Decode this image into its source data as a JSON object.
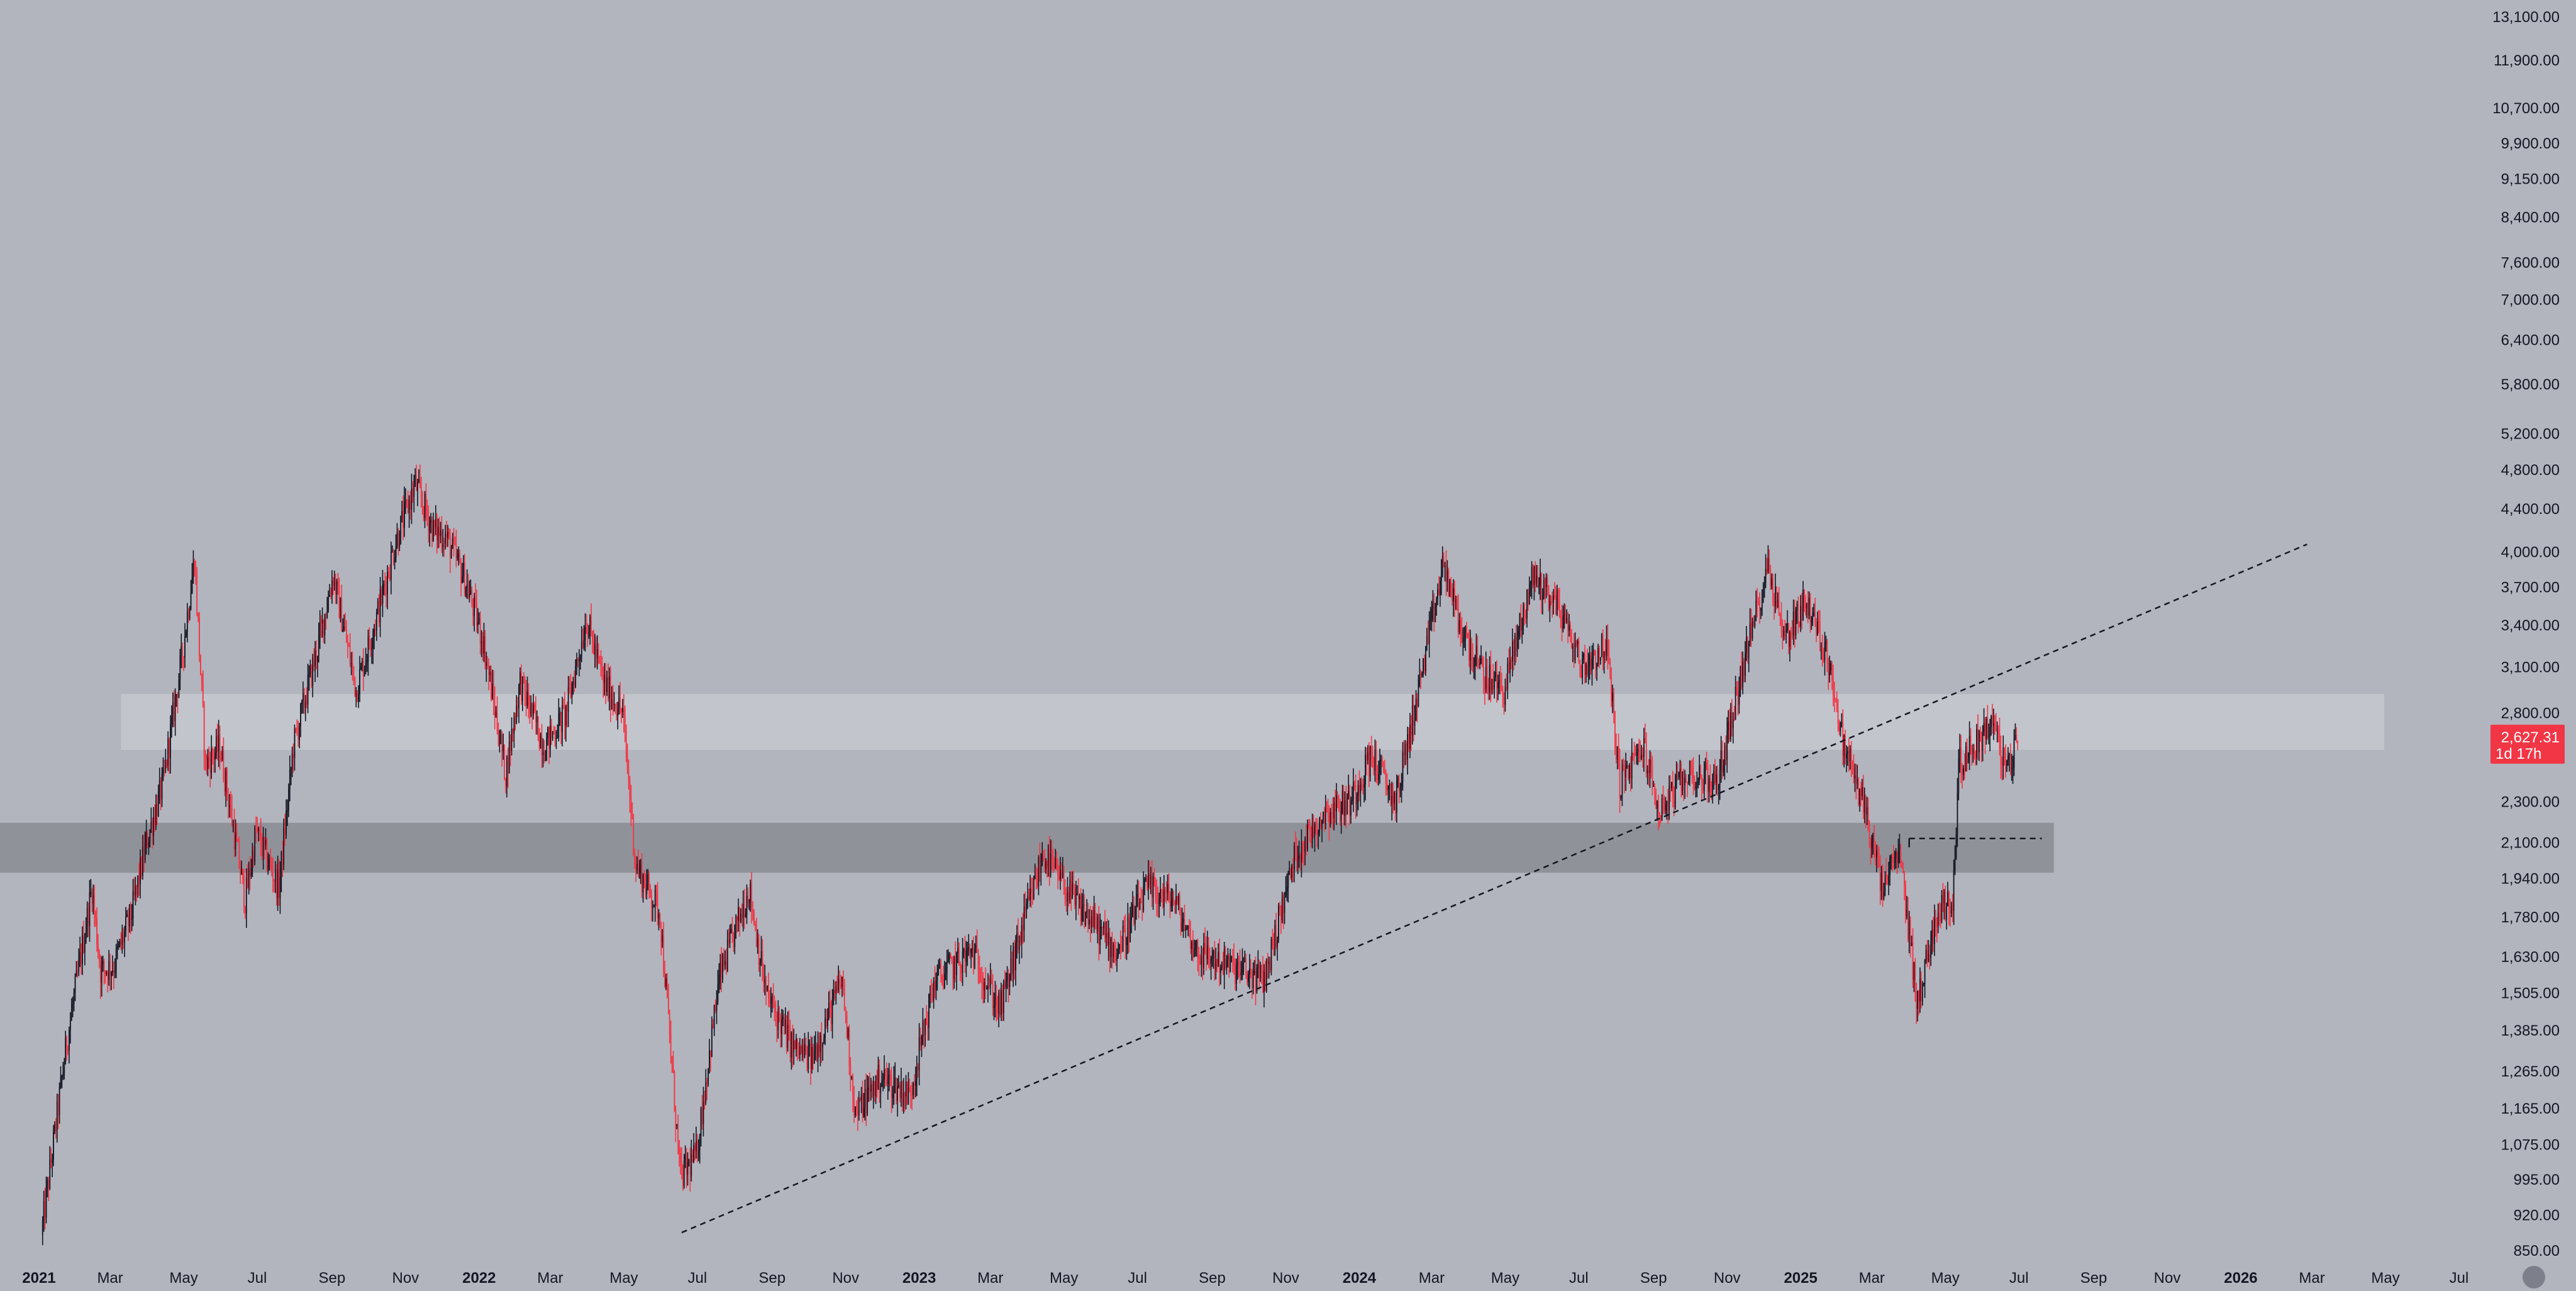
{
  "chart_data": {
    "type": "candlestick",
    "title": "",
    "xlabel": "",
    "ylabel": "",
    "yscale": "log",
    "ylim": [
      830,
      13600
    ],
    "xlim": [
      "2021-01-01",
      "2026-07-31"
    ],
    "grid": false,
    "colors": {
      "background": "#b2b5be",
      "up": "#131722",
      "down": "#f23645",
      "text": "#131722",
      "price_label": "#f23645",
      "resistance_zone": "#c4c6cd",
      "support_zone": "#8a8c93",
      "trendline": "#131722"
    },
    "y_ticks": [
      {
        "value": 13100,
        "label": "13,100.00"
      },
      {
        "value": 11900,
        "label": "11,900.00"
      },
      {
        "value": 10700,
        "label": "10,700.00"
      },
      {
        "value": 9900,
        "label": "9,900.00"
      },
      {
        "value": 9150,
        "label": "9,150.00"
      },
      {
        "value": 8400,
        "label": "8,400.00"
      },
      {
        "value": 7600,
        "label": "7,600.00"
      },
      {
        "value": 7000,
        "label": "7,000.00"
      },
      {
        "value": 6400,
        "label": "6,400.00"
      },
      {
        "value": 5800,
        "label": "5,800.00"
      },
      {
        "value": 5200,
        "label": "5,200.00"
      },
      {
        "value": 4800,
        "label": "4,800.00"
      },
      {
        "value": 4400,
        "label": "4,400.00"
      },
      {
        "value": 4000,
        "label": "4,000.00"
      },
      {
        "value": 3700,
        "label": "3,700.00"
      },
      {
        "value": 3400,
        "label": "3,400.00"
      },
      {
        "value": 3100,
        "label": "3,100.00"
      },
      {
        "value": 2800,
        "label": "2,800.00"
      },
      {
        "value": 2300,
        "label": "2,300.00"
      },
      {
        "value": 2100,
        "label": "2,100.00"
      },
      {
        "value": 1940,
        "label": "1,940.00"
      },
      {
        "value": 1780,
        "label": "1,780.00"
      },
      {
        "value": 1630,
        "label": "1,630.00"
      },
      {
        "value": 1505,
        "label": "1,505.00"
      },
      {
        "value": 1385,
        "label": "1,385.00"
      },
      {
        "value": 1265,
        "label": "1,265.00"
      },
      {
        "value": 1165,
        "label": "1,165.00"
      },
      {
        "value": 1075,
        "label": "1,075.00"
      },
      {
        "value": 995,
        "label": "995.00"
      },
      {
        "value": 920,
        "label": "920.00"
      },
      {
        "value": 850,
        "label": "850.00"
      }
    ],
    "x_ticks": [
      {
        "date": "2021-01-01",
        "label": "2021",
        "year": true
      },
      {
        "date": "2021-03-01",
        "label": "Mar"
      },
      {
        "date": "2021-05-01",
        "label": "May"
      },
      {
        "date": "2021-07-01",
        "label": "Jul"
      },
      {
        "date": "2021-09-01",
        "label": "Sep"
      },
      {
        "date": "2021-11-01",
        "label": "Nov"
      },
      {
        "date": "2022-01-01",
        "label": "2022",
        "year": true
      },
      {
        "date": "2022-03-01",
        "label": "Mar"
      },
      {
        "date": "2022-05-01",
        "label": "May"
      },
      {
        "date": "2022-07-01",
        "label": "Jul"
      },
      {
        "date": "2022-09-01",
        "label": "Sep"
      },
      {
        "date": "2022-11-01",
        "label": "Nov"
      },
      {
        "date": "2023-01-01",
        "label": "2023",
        "year": true
      },
      {
        "date": "2023-03-01",
        "label": "Mar"
      },
      {
        "date": "2023-05-01",
        "label": "May"
      },
      {
        "date": "2023-07-01",
        "label": "Jul"
      },
      {
        "date": "2023-09-01",
        "label": "Sep"
      },
      {
        "date": "2023-11-01",
        "label": "Nov"
      },
      {
        "date": "2024-01-01",
        "label": "2024",
        "year": true
      },
      {
        "date": "2024-03-01",
        "label": "Mar"
      },
      {
        "date": "2024-05-01",
        "label": "May"
      },
      {
        "date": "2024-07-01",
        "label": "Jul"
      },
      {
        "date": "2024-09-01",
        "label": "Sep"
      },
      {
        "date": "2024-11-01",
        "label": "Nov"
      },
      {
        "date": "2025-01-01",
        "label": "2025",
        "year": true
      },
      {
        "date": "2025-03-01",
        "label": "Mar"
      },
      {
        "date": "2025-05-01",
        "label": "May"
      },
      {
        "date": "2025-07-01",
        "label": "Jul"
      },
      {
        "date": "2025-09-01",
        "label": "Sep"
      },
      {
        "date": "2025-11-01",
        "label": "Nov"
      },
      {
        "date": "2026-01-01",
        "label": "2026",
        "year": true
      },
      {
        "date": "2026-03-01",
        "label": "Mar"
      },
      {
        "date": "2026-05-01",
        "label": "May"
      },
      {
        "date": "2026-07-01",
        "label": "Jul"
      }
    ],
    "price_path": [
      [
        "2021-01-04",
        880
      ],
      [
        "2021-01-25",
        1350
      ],
      [
        "2021-02-15",
        1900
      ],
      [
        "2021-02-22",
        1580
      ],
      [
        "2021-03-05",
        1600
      ],
      [
        "2021-03-20",
        1800
      ],
      [
        "2021-04-01",
        2100
      ],
      [
        "2021-04-15",
        2400
      ],
      [
        "2021-05-01",
        3200
      ],
      [
        "2021-05-11",
        3950
      ],
      [
        "2021-05-20",
        2500
      ],
      [
        "2021-06-01",
        2600
      ],
      [
        "2021-06-22",
        1850
      ],
      [
        "2021-07-01",
        2150
      ],
      [
        "2021-07-20",
        1900
      ],
      [
        "2021-08-01",
        2600
      ],
      [
        "2021-08-20",
        3200
      ],
      [
        "2021-09-03",
        3800
      ],
      [
        "2021-09-22",
        2950
      ],
      [
        "2021-10-10",
        3500
      ],
      [
        "2021-10-25",
        4100
      ],
      [
        "2021-11-10",
        4650
      ],
      [
        "2021-11-25",
        4200
      ],
      [
        "2021-12-05",
        4150
      ],
      [
        "2021-12-20",
        3800
      ],
      [
        "2022-01-05",
        3300
      ],
      [
        "2022-01-24",
        2450
      ],
      [
        "2022-02-05",
        3000
      ],
      [
        "2022-02-25",
        2600
      ],
      [
        "2022-03-15",
        2800
      ],
      [
        "2022-04-01",
        3450
      ],
      [
        "2022-04-15",
        3000
      ],
      [
        "2022-05-01",
        2800
      ],
      [
        "2022-05-12",
        2000
      ],
      [
        "2022-06-01",
        1800
      ],
      [
        "2022-06-18",
        1000
      ],
      [
        "2022-07-01",
        1050
      ],
      [
        "2022-07-20",
        1550
      ],
      [
        "2022-08-14",
        1900
      ],
      [
        "2022-08-28",
        1500
      ],
      [
        "2022-09-20",
        1330
      ],
      [
        "2022-10-05",
        1300
      ],
      [
        "2022-10-30",
        1550
      ],
      [
        "2022-11-10",
        1150
      ],
      [
        "2022-12-01",
        1250
      ],
      [
        "2022-12-25",
        1200
      ],
      [
        "2023-01-15",
        1550
      ],
      [
        "2023-02-15",
        1650
      ],
      [
        "2023-03-10",
        1450
      ],
      [
        "2023-04-01",
        1800
      ],
      [
        "2023-04-15",
        2050
      ],
      [
        "2023-05-10",
        1850
      ],
      [
        "2023-06-15",
        1650
      ],
      [
        "2023-07-10",
        1900
      ],
      [
        "2023-08-01",
        1850
      ],
      [
        "2023-08-20",
        1650
      ],
      [
        "2023-09-15",
        1600
      ],
      [
        "2023-10-15",
        1550
      ],
      [
        "2023-11-10",
        2050
      ],
      [
        "2023-12-05",
        2250
      ],
      [
        "2023-12-25",
        2300
      ],
      [
        "2024-01-12",
        2550
      ],
      [
        "2024-02-01",
        2300
      ],
      [
        "2024-02-20",
        2950
      ],
      [
        "2024-03-12",
        3900
      ],
      [
        "2024-03-25",
        3400
      ],
      [
        "2024-04-13",
        3050
      ],
      [
        "2024-05-01",
        2950
      ],
      [
        "2024-05-25",
        3800
      ],
      [
        "2024-06-15",
        3550
      ],
      [
        "2024-07-05",
        3100
      ],
      [
        "2024-07-25",
        3250
      ],
      [
        "2024-08-05",
        2400
      ],
      [
        "2024-08-25",
        2600
      ],
      [
        "2024-09-06",
        2250
      ],
      [
        "2024-10-01",
        2450
      ],
      [
        "2024-10-25",
        2400
      ],
      [
        "2024-11-15",
        3100
      ],
      [
        "2024-12-06",
        3900
      ],
      [
        "2024-12-20",
        3300
      ],
      [
        "2025-01-06",
        3600
      ],
      [
        "2025-01-27",
        3100
      ],
      [
        "2025-02-03",
        2700
      ],
      [
        "2025-02-25",
        2250
      ],
      [
        "2025-03-10",
        1900
      ],
      [
        "2025-03-25",
        2050
      ],
      [
        "2025-04-09",
        1470
      ],
      [
        "2025-04-25",
        1800
      ],
      [
        "2025-05-08",
        1850
      ],
      [
        "2025-05-13",
        2500
      ],
      [
        "2025-05-25",
        2600
      ],
      [
        "2025-06-10",
        2750
      ],
      [
        "2025-06-22",
        2450
      ],
      [
        "2025-06-30",
        2627
      ]
    ],
    "last_price": {
      "value": 2627.31,
      "label": "2,627.31",
      "countdown": "1d 17h"
    },
    "zones": [
      {
        "name": "resistance-zone",
        "start": "2021-03-10",
        "end": "2026-04-30",
        "low": 2580,
        "high": 2920
      },
      {
        "name": "support-zone",
        "start": "2020-11-20",
        "end": "2025-07-30",
        "low": 1965,
        "high": 2195
      }
    ],
    "trendline": {
      "start": [
        "2022-06-18",
        885
      ],
      "end": [
        "2026-02-25",
        4070
      ]
    },
    "level_line": {
      "start": [
        "2025-04-01",
        2120
      ],
      "end": [
        "2025-07-20",
        2120
      ]
    }
  }
}
